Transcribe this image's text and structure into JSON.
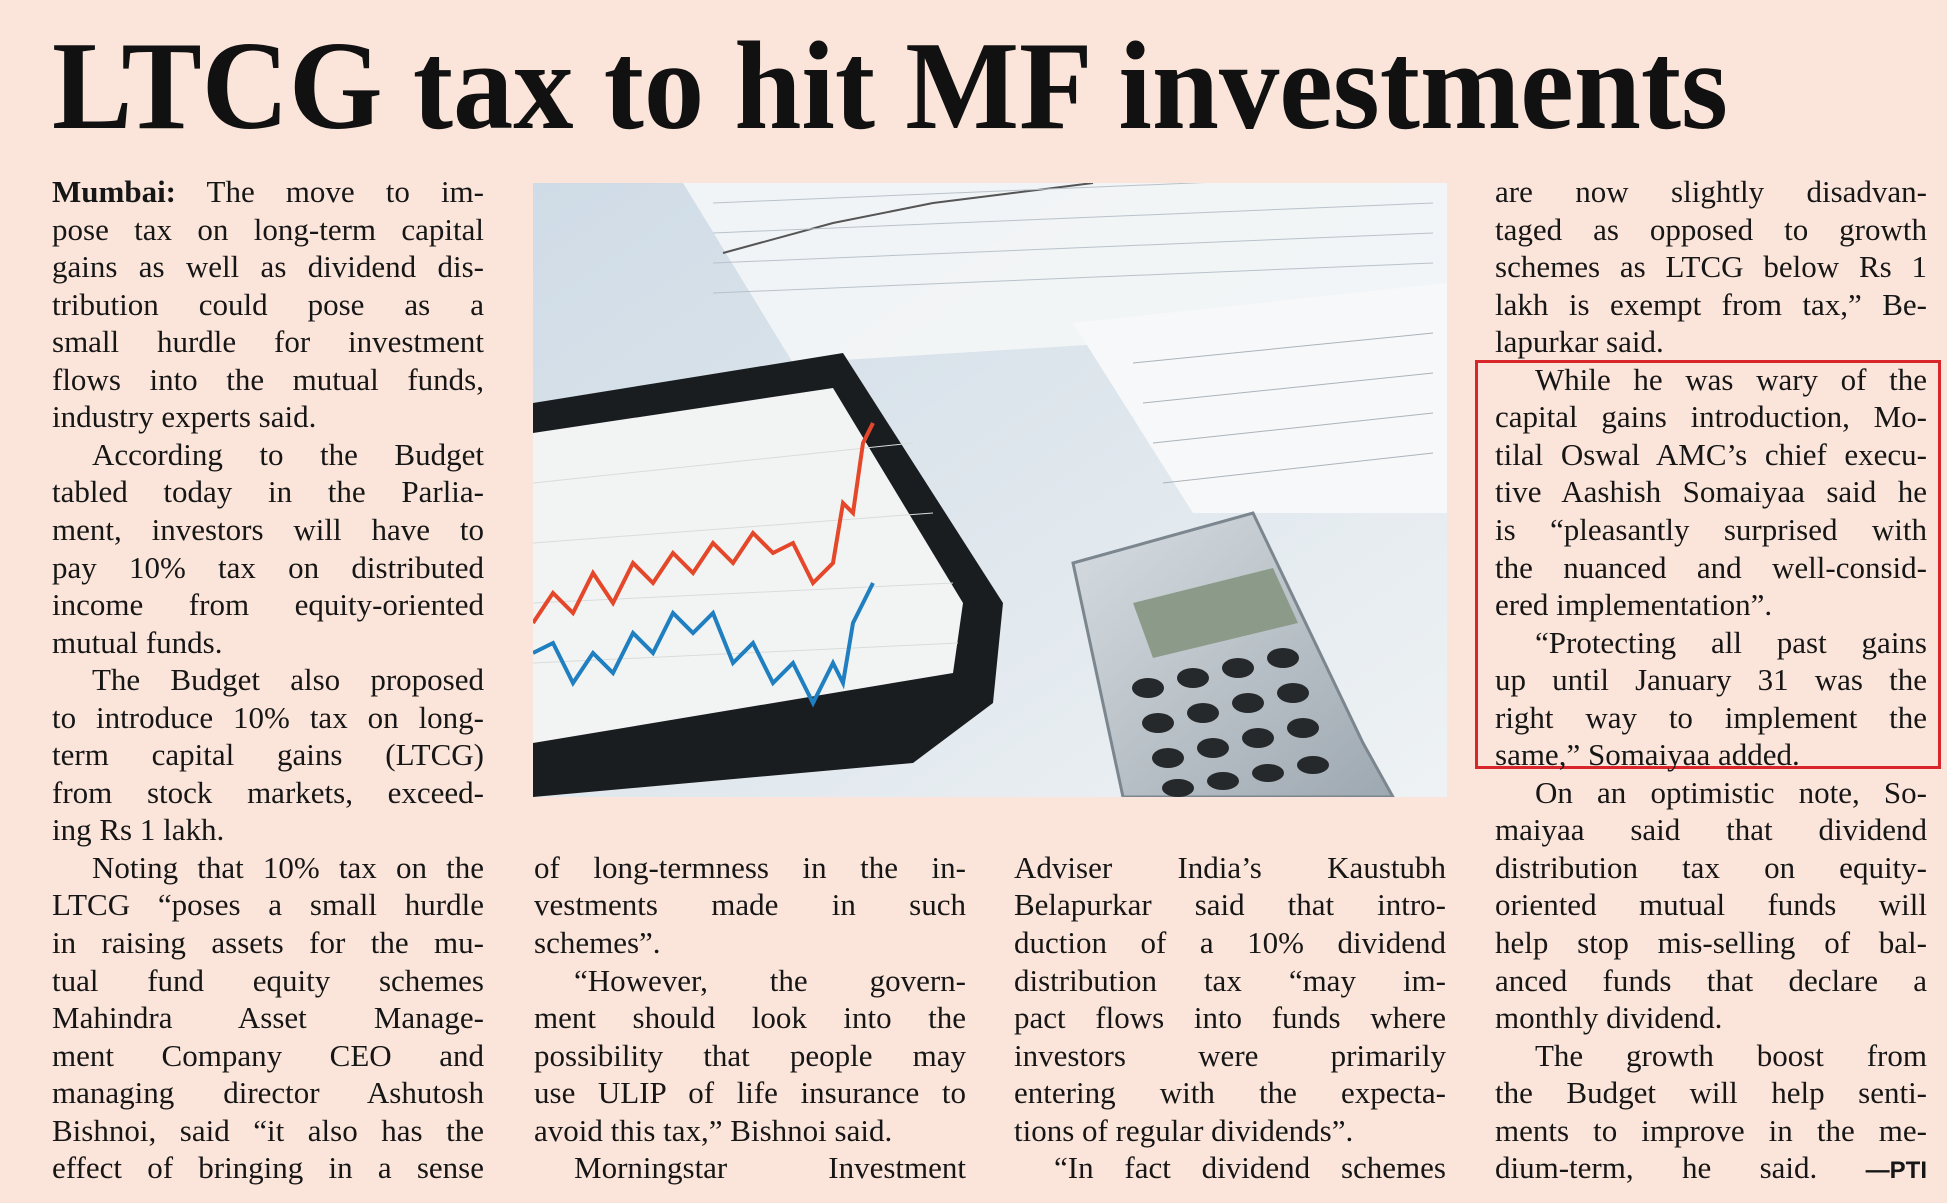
{
  "article": {
    "title": "LTCG tax to hit MF investments",
    "columns": [
      {
        "paragraphs": [
          {
            "dateline": "Mumbai:",
            "lines": [
              "The move to im-",
              "pose tax on long-term capital",
              "gains as well as dividend dis-",
              "tribution could pose as a",
              "small hurdle for investment",
              "flows into the mutual funds,",
              "industry experts said."
            ]
          },
          {
            "lines": [
              "According to the Budget",
              "tabled today in the Parlia-",
              "ment, investors will have to",
              "pay 10% tax on distributed",
              "income from equity-oriented",
              "mutual funds."
            ]
          },
          {
            "lines": [
              "The Budget also proposed",
              "to introduce 10% tax on long-",
              "term capital gains (LTCG)",
              "from stock markets, exceed-",
              "ing Rs 1 lakh."
            ]
          },
          {
            "lines": [
              "Noting that 10% tax on the",
              "LTCG “poses a small hurdle",
              "in raising assets for the mu-",
              "tual fund equity schemes",
              "Mahindra Asset Manage-",
              "ment Company CEO and",
              "managing director Ashutosh",
              "Bishnoi, said “it also has the",
              "effect of bringing in a sense"
            ]
          }
        ]
      },
      {
        "paragraphs": [
          {
            "lines": [
              "of long-termness in the in-",
              "vestments made in such",
              "schemes”."
            ]
          },
          {
            "lines": [
              "“However, the govern-",
              "ment should look into the",
              "possibility that people may",
              "use ULIP of life insurance to",
              "avoid this tax,” Bishnoi said."
            ]
          },
          {
            "lines": [
              "Morningstar Investment"
            ]
          }
        ]
      },
      {
        "paragraphs": [
          {
            "lines": [
              "Adviser India’s Kaustubh",
              "Belapurkar said that intro-",
              "duction of a 10% dividend",
              "distribution tax “may im-",
              "pact flows into funds where",
              "investors were primarily",
              "entering with the expecta-",
              "tions of regular dividends”."
            ]
          },
          {
            "lines": [
              "“In fact dividend schemes"
            ]
          }
        ]
      },
      {
        "paragraphs": [
          {
            "lines": [
              "are now slightly disadvan-",
              "taged as opposed to growth",
              "schemes as LTCG below Rs 1",
              "lakh is exempt from tax,” Be-",
              "lapurkar said."
            ]
          },
          {
            "lines": [
              "While he was wary of the",
              "capital gains introduction, Mo-",
              "tilal Oswal AMC’s chief execu-",
              "tive Aashish Somaiyaa said he",
              "is “pleasantly surprised with",
              "the nuanced and well-consid-",
              "ered implementation”."
            ]
          },
          {
            "lines": [
              "“Protecting all past gains",
              "up until January 31 was the",
              "right way to implement the",
              "same,” Somaiyaa added."
            ]
          },
          {
            "lines": [
              "On an optimistic note, So-",
              "maiyaa said that dividend",
              "distribution tax on equity-",
              "oriented mutual funds will",
              "help stop mis-selling of bal-",
              "anced funds that declare a",
              "monthly dividend."
            ]
          },
          {
            "lines": [
              "The growth boost from",
              "the Budget will help senti-",
              "ments to improve in the me-",
              "dium-term, he said."
            ],
            "credit": "—PTI"
          }
        ]
      }
    ]
  }
}
